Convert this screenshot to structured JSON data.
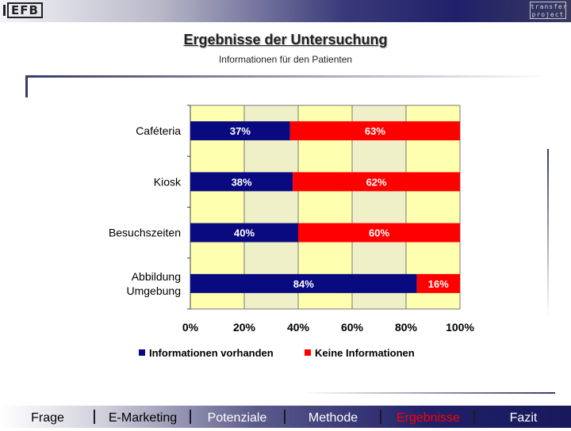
{
  "header": {
    "logo_text": "EFB",
    "partner_logo_lines": [
      "transfer",
      "project"
    ],
    "title": "Ergebnisse der Untersuchung",
    "subtitle": "Informationen für den Patienten"
  },
  "chart_data": {
    "type": "bar",
    "orientation": "horizontal",
    "stacked": true,
    "percent": true,
    "categories": [
      "Caféteria",
      "Kiosk",
      "Besuchszeiten",
      "Abbildung Umgebung"
    ],
    "series": [
      {
        "name": "Informationen vorhanden",
        "values": [
          37,
          38,
          40,
          84
        ],
        "labels": [
          "37%",
          "38%",
          "40%",
          "84%"
        ],
        "color": "#0a0a80"
      },
      {
        "name": "Keine Informationen",
        "values": [
          63,
          62,
          60,
          16
        ],
        "labels": [
          "63%",
          "62%",
          "60%",
          "16%"
        ],
        "color": "#ff0000"
      }
    ],
    "xlim": [
      0,
      100
    ],
    "xticks": [
      "0%",
      "20%",
      "40%",
      "60%",
      "80%",
      "100%"
    ],
    "background_bands": [
      "#ffffb0",
      "#f0f0c8"
    ],
    "grid": true,
    "legend_position": "bottom"
  },
  "nav": {
    "items": [
      "Frage",
      "E-Marketing",
      "Potenziale",
      "Methode",
      "Ergebnisse",
      "Fazit"
    ],
    "active_index": 4,
    "active_color": "#ff0000",
    "text_color_light": "#000000",
    "text_color_dark": "#ffffff"
  }
}
